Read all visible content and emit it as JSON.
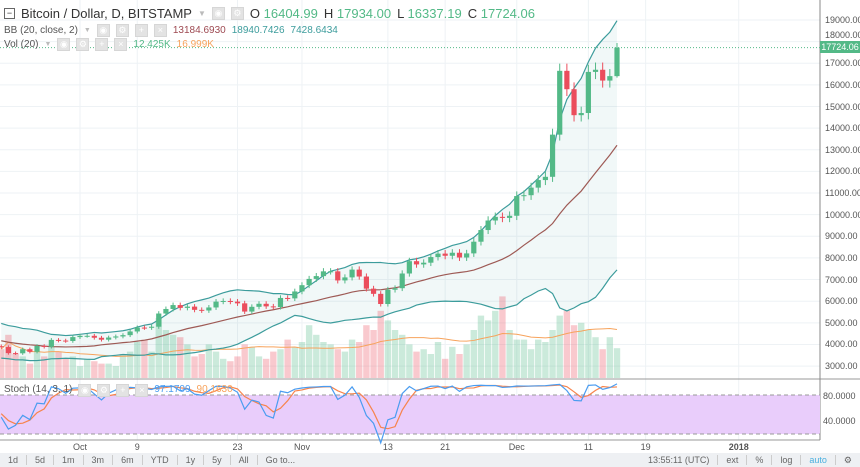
{
  "header": {
    "symbol": "Bitcoin / Dollar, D, BITSTAMP",
    "o_label": "O",
    "o": "16404.99",
    "h_label": "H",
    "h": "17934.00",
    "l_label": "L",
    "l": "16337.19",
    "c_label": "C",
    "c": "17724.06"
  },
  "bb": {
    "label": "BB (20, close, 2)",
    "basis": "13184.6930",
    "upper": "18940.7426",
    "lower": "7428.6434"
  },
  "vol": {
    "label": "Vol (20)",
    "value": "12.425K",
    "ma": "16.999K"
  },
  "stoch": {
    "label": "Stoch (14, 3, 1)",
    "k": "97.1709",
    "d": "90.1630",
    "ticks": [
      "80.0000",
      "40.0000"
    ]
  },
  "last_price": "17724.06",
  "price_ticks": [
    "19000.00",
    "18000.00",
    "17000.00",
    "16000.00",
    "15000.00",
    "14000.00",
    "13000.00",
    "12000.00",
    "11000.00",
    "10000.00",
    "9000.00",
    "8000.00",
    "7000.00",
    "6000.00",
    "5000.00",
    "4000.00",
    "3000.00"
  ],
  "time_labels": [
    {
      "label": "Oct",
      "day": 30
    },
    {
      "label": "9",
      "day": 38
    },
    {
      "label": "23",
      "day": 52
    },
    {
      "label": "Nov",
      "day": 61
    },
    {
      "label": "13",
      "day": 73
    },
    {
      "label": "21",
      "day": 81
    },
    {
      "label": "Dec",
      "day": 91
    },
    {
      "label": "11",
      "day": 101
    },
    {
      "label": "19",
      "day": 109
    },
    {
      "label": "2018",
      "day": 122
    }
  ],
  "colors": {
    "up": "#53b987",
    "down": "#eb4d5c",
    "bb_band": "#3c9c9c",
    "bb_basis": "#9e5a55",
    "stoch_k": "#4a9cf0",
    "stoch_d": "#f7844c",
    "stoch_bg": "#e9cdfb",
    "vol_ma": "#f7a35c"
  },
  "chart_data": {
    "type": "candlestick",
    "first_date": "2017-09-01",
    "first_visible_day": 19,
    "closes": [
      4890,
      4580,
      4630,
      4300,
      4420,
      4620,
      4620,
      4310,
      4330,
      4240,
      4210,
      4170,
      3870,
      3240,
      3700,
      3700,
      3690,
      4090,
      3920,
      3880,
      3600,
      3590,
      3780,
      3660,
      3930,
      3890,
      4210,
      4180,
      4160,
      4340,
      4400,
      4400,
      4310,
      4220,
      4320,
      4370,
      4430,
      4600,
      4780,
      4770,
      4820,
      5430,
      5640,
      5820,
      5690,
      5750,
      5600,
      5570,
      5710,
      5980,
      6010,
      5980,
      5900,
      5520,
      5740,
      5880,
      5760,
      5730,
      6150,
      6130,
      6450,
      6740,
      7030,
      7160,
      7380,
      7380,
      6960,
      7100,
      7460,
      7140,
      6580,
      6340,
      5870,
      6530,
      6600,
      7280,
      7850,
      7700,
      7780,
      8040,
      8200,
      8100,
      8240,
      8020,
      8210,
      8750,
      9290,
      9730,
      9900,
      9850,
      9950,
      10860,
      10900,
      11250,
      11600,
      11750,
      13700,
      16650,
      15800,
      14600,
      14700,
      16600,
      16700,
      16200,
      16404.99,
      17724.06
    ],
    "volumes_k": [
      12,
      18,
      10,
      9,
      6,
      11,
      9,
      13,
      11,
      8,
      9,
      5,
      8,
      7,
      6,
      6,
      5,
      10,
      11,
      15,
      16,
      11,
      25,
      20,
      18,
      17,
      14,
      9,
      10,
      14,
      11,
      8,
      7,
      9,
      14,
      13,
      9,
      8,
      11,
      12,
      16,
      13,
      15,
      22,
      18,
      15,
      14,
      12,
      11,
      16,
      15,
      22,
      20,
      28,
      24,
      20,
      18,
      14,
      11,
      12,
      10,
      15,
      8,
      13,
      10,
      14,
      20,
      26,
      24,
      28,
      34,
      20,
      16,
      16,
      12,
      16,
      15,
      20,
      26,
      28,
      22,
      23,
      20,
      17,
      12,
      17,
      12.425
    ],
    "price_range": [
      2500,
      19800
    ]
  },
  "toolbar": {
    "ranges": [
      "1d",
      "5d",
      "1m",
      "3m",
      "6m",
      "YTD",
      "1y",
      "5y",
      "All",
      "Go to..."
    ],
    "time": "13:55:11 (UTC)",
    "ext": "ext",
    "pct": "%",
    "log": "log",
    "auto": "auto"
  }
}
